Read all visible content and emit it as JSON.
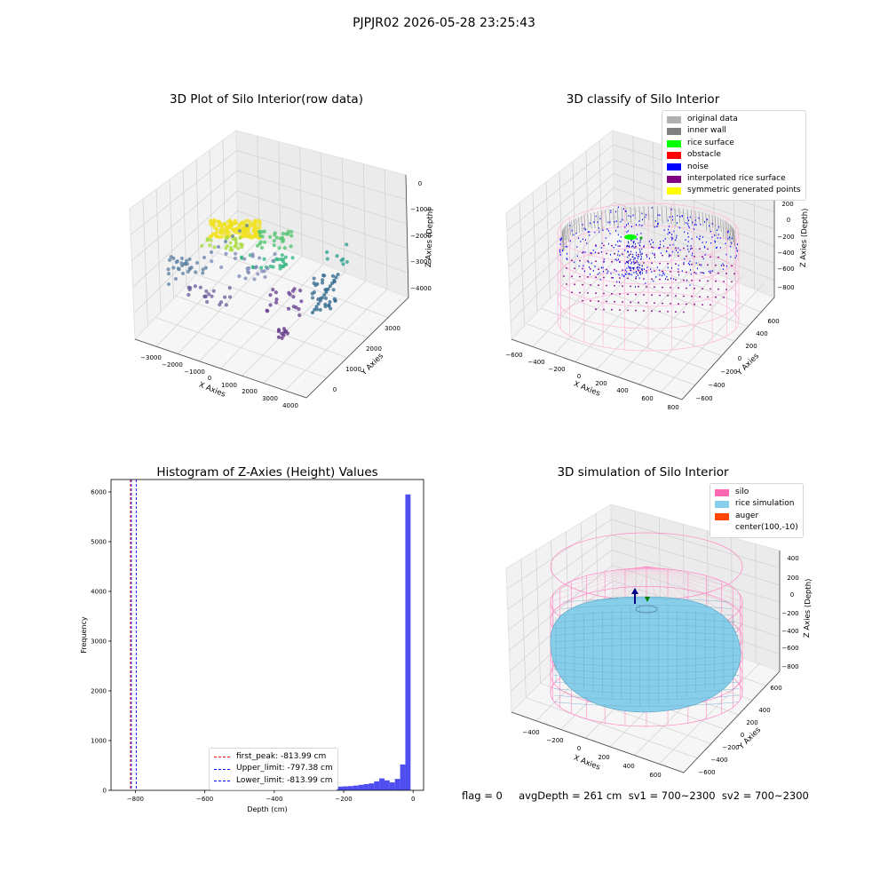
{
  "suptitle": "PJPJR02 2026-05-28 23:25:43",
  "panels": {
    "raw": {
      "title": "3D Plot of Silo Interior(row data)",
      "x_axis_label": "X Axies",
      "y_axis_label": "Y Axies",
      "z_axis_label": "Z Axies (Depth)",
      "x_ticks": [
        "−3000",
        "−2000",
        "−1000",
        "0",
        "1000",
        "2000",
        "3000",
        "4000"
      ],
      "y_ticks": [
        "0",
        "1000",
        "2000",
        "3000"
      ],
      "z_ticks": [
        "0",
        "−1000",
        "−2000",
        "−3000",
        "−4000"
      ]
    },
    "classify": {
      "title": "3D classify of Silo Interior",
      "x_axis_label": "X Axies",
      "y_axis_label": "Y Axies",
      "z_axis_label": "Z Axies (Depth)",
      "x_ticks": [
        "−600",
        "−400",
        "−200",
        "0",
        "200",
        "400",
        "600",
        "800"
      ],
      "y_ticks": [
        "−600",
        "−400",
        "−200",
        "0",
        "200",
        "400",
        "600"
      ],
      "z_ticks": [
        "200",
        "0",
        "−200",
        "−400",
        "−600",
        "−800"
      ],
      "legend": [
        {
          "label": "original data",
          "color": "#b0b0b0"
        },
        {
          "label": "inner wall",
          "color": "#808080"
        },
        {
          "label": "rice surface",
          "color": "#00ff00"
        },
        {
          "label": "obstacle",
          "color": "#ff0000"
        },
        {
          "label": "noise",
          "color": "#0000ff"
        },
        {
          "label": "interpolated rice surface",
          "color": "#800080"
        },
        {
          "label": "symmetric generated points",
          "color": "#ffff00"
        }
      ]
    },
    "histogram": {
      "title": "Histogram of Z-Axies (Height) Values",
      "x_axis_label": "Depth (cm)",
      "y_axis_label": "Frequency",
      "legend": [
        {
          "label": "first_peak: -813.99 cm",
          "color": "#ff0000"
        },
        {
          "label": "Upper_limit: -797.38 cm",
          "color": "#0000ff"
        },
        {
          "label": "Lower_limit: -813.99 cm",
          "color": "#0000ff"
        }
      ],
      "bar_color": "#4646f0"
    },
    "simulation": {
      "title": "3D simulation of Silo Interior",
      "x_axis_label": "X Axies",
      "y_axis_label": "Y Axies",
      "z_axis_label": "Z Axies (Depth)",
      "x_ticks": [
        "−400",
        "−200",
        "0",
        "200",
        "400",
        "600"
      ],
      "y_ticks": [
        "−600",
        "−400",
        "−200",
        "0",
        "200",
        "400",
        "600"
      ],
      "z_ticks": [
        "400",
        "200",
        "0",
        "−200",
        "−400",
        "−600",
        "−800"
      ],
      "legend": [
        {
          "label": "silo",
          "color": "#ff69b4"
        },
        {
          "label": "rice simulation",
          "color": "#87ceeb"
        },
        {
          "label": "auger",
          "color": "#ff4500"
        },
        {
          "label": "center(100,-10)",
          "color": ""
        }
      ]
    }
  },
  "footer": "flag = 0     avgDepth = 261 cm  sv1 = 700~2300  sv2 = 700~2300",
  "chart_data": [
    {
      "type": "scatter",
      "title": "3D Plot of Silo Interior(row data)",
      "xlabel": "X Axies",
      "ylabel": "Y Axies",
      "zlabel": "Z Axies (Depth)",
      "xlim": [
        -3500,
        4500
      ],
      "ylim": [
        -500,
        3500
      ],
      "zlim": [
        -4500,
        0
      ]
    },
    {
      "type": "scatter",
      "title": "3D classify of Silo Interior",
      "xlabel": "X Axies",
      "ylabel": "Y Axies",
      "zlabel": "Z Axies (Depth)",
      "xlim": [
        -700,
        800
      ],
      "ylim": [
        -700,
        700
      ],
      "zlim": [
        -900,
        300
      ],
      "series": [
        {
          "name": "original data"
        },
        {
          "name": "inner wall"
        },
        {
          "name": "rice surface"
        },
        {
          "name": "obstacle"
        },
        {
          "name": "noise"
        },
        {
          "name": "interpolated rice surface"
        },
        {
          "name": "symmetric generated points"
        }
      ]
    },
    {
      "type": "bar",
      "title": "Histogram of Z-Axies (Height) Values",
      "xlabel": "Depth (cm)",
      "ylabel": "Frequency",
      "xlim": [
        -870,
        30
      ],
      "ylim": [
        0,
        6250
      ],
      "x_ticks": [
        -800,
        -600,
        -400,
        -200,
        0
      ],
      "y_ticks": [
        0,
        1000,
        2000,
        3000,
        4000,
        5000,
        6000
      ],
      "bin_width": 15,
      "bins": [
        {
          "x": -525,
          "count": 5
        },
        {
          "x": -510,
          "count": 6
        },
        {
          "x": -495,
          "count": 8
        },
        {
          "x": -480,
          "count": 8
        },
        {
          "x": -465,
          "count": 10
        },
        {
          "x": -450,
          "count": 12
        },
        {
          "x": -435,
          "count": 14
        },
        {
          "x": -420,
          "count": 18
        },
        {
          "x": -405,
          "count": 22
        },
        {
          "x": -390,
          "count": 25
        },
        {
          "x": -375,
          "count": 28
        },
        {
          "x": -360,
          "count": 32
        },
        {
          "x": -345,
          "count": 35
        },
        {
          "x": -330,
          "count": 38
        },
        {
          "x": -315,
          "count": 42
        },
        {
          "x": -300,
          "count": 45
        },
        {
          "x": -285,
          "count": 48
        },
        {
          "x": -270,
          "count": 52
        },
        {
          "x": -255,
          "count": 55
        },
        {
          "x": -240,
          "count": 60
        },
        {
          "x": -225,
          "count": 66
        },
        {
          "x": -210,
          "count": 75
        },
        {
          "x": -195,
          "count": 80
        },
        {
          "x": -180,
          "count": 85
        },
        {
          "x": -165,
          "count": 95
        },
        {
          "x": -150,
          "count": 110
        },
        {
          "x": -135,
          "count": 125
        },
        {
          "x": -120,
          "count": 140
        },
        {
          "x": -105,
          "count": 180
        },
        {
          "x": -90,
          "count": 240
        },
        {
          "x": -75,
          "count": 200
        },
        {
          "x": -60,
          "count": 160
        },
        {
          "x": -45,
          "count": 230
        },
        {
          "x": -30,
          "count": 520
        },
        {
          "x": -15,
          "count": 5950
        }
      ],
      "vlines": [
        {
          "name": "first_peak: -813.99 cm",
          "x": -813.99,
          "color": "#ff0000"
        },
        {
          "name": "Upper_limit: -797.38 cm",
          "x": -797.38,
          "color": "#0000ff"
        },
        {
          "name": "Lower_limit: -813.99 cm",
          "x": -813.99,
          "color": "#0000ff"
        }
      ],
      "legend_position": "lower-center"
    },
    {
      "type": "scatter",
      "title": "3D simulation of Silo Interior",
      "xlabel": "X Axies",
      "ylabel": "Y Axies",
      "zlabel": "Z Axies (Depth)",
      "xlim": [
        -550,
        700
      ],
      "ylim": [
        -700,
        700
      ],
      "zlim": [
        -900,
        450
      ],
      "series": [
        {
          "name": "silo"
        },
        {
          "name": "rice simulation"
        },
        {
          "name": "auger"
        },
        {
          "name": "center(100,-10)"
        }
      ]
    }
  ]
}
